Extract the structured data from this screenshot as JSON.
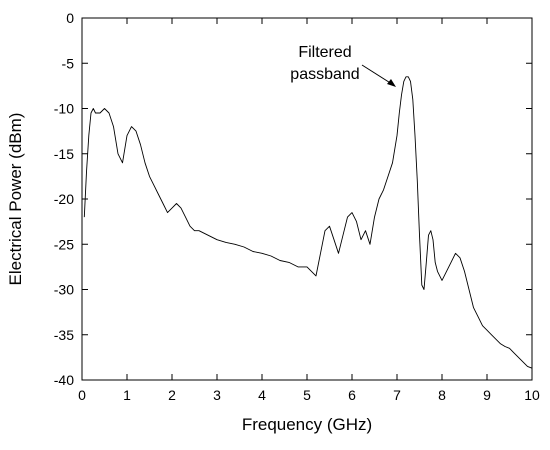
{
  "chart_data": {
    "type": "line",
    "title": "",
    "xlabel": "Frequency (GHz)",
    "ylabel": "Electrical Power (dBm)",
    "xlim": [
      0,
      10
    ],
    "ylim": [
      -40,
      0
    ],
    "xticks": [
      0,
      1,
      2,
      3,
      4,
      5,
      6,
      7,
      8,
      9,
      10
    ],
    "yticks": [
      0,
      -5,
      -10,
      -15,
      -20,
      -25,
      -30,
      -35,
      -40
    ],
    "grid": false,
    "legend": "none",
    "line_color": "#000000",
    "annotation": {
      "text_line1": "Filtered",
      "text_line2": "passband",
      "points_to": [
        7.15,
        -7.5
      ]
    },
    "series": [
      {
        "x": [
          0.05,
          0.1,
          0.15,
          0.2,
          0.25,
          0.3,
          0.4,
          0.5,
          0.6,
          0.7,
          0.8,
          0.9,
          1.0,
          1.1,
          1.2,
          1.3,
          1.4,
          1.5,
          1.6,
          1.7,
          1.8,
          1.9,
          2.0,
          2.1,
          2.2,
          2.3,
          2.4,
          2.5,
          2.6,
          2.8,
          3.0,
          3.2,
          3.4,
          3.6,
          3.8,
          4.0,
          4.2,
          4.4,
          4.6,
          4.8,
          5.0,
          5.1,
          5.2,
          5.3,
          5.4,
          5.5,
          5.6,
          5.7,
          5.8,
          5.9,
          6.0,
          6.1,
          6.2,
          6.3,
          6.4,
          6.5,
          6.6,
          6.7,
          6.8,
          6.9,
          7.0,
          7.05,
          7.1,
          7.15,
          7.2,
          7.25,
          7.3,
          7.35,
          7.4,
          7.45,
          7.5,
          7.55,
          7.6,
          7.65,
          7.7,
          7.75,
          7.8,
          7.85,
          7.9,
          8.0,
          8.1,
          8.2,
          8.3,
          8.4,
          8.5,
          8.6,
          8.7,
          8.8,
          8.9,
          9.0,
          9.1,
          9.2,
          9.3,
          9.4,
          9.5,
          9.6,
          9.7,
          9.8,
          9.9,
          10.0
        ],
        "values": [
          -22,
          -17,
          -13,
          -10.5,
          -10,
          -10.5,
          -10.5,
          -10,
          -10.5,
          -12,
          -15,
          -16,
          -13,
          -12,
          -12.5,
          -14,
          -16,
          -17.5,
          -18.5,
          -19.5,
          -20.5,
          -21.5,
          -21,
          -20.5,
          -21,
          -22,
          -23,
          -23.5,
          -23.5,
          -24,
          -24.5,
          -24.8,
          -25,
          -25.3,
          -25.8,
          -26,
          -26.3,
          -26.8,
          -27,
          -27.5,
          -27.5,
          -28,
          -28.5,
          -26,
          -23.5,
          -23,
          -24.5,
          -26,
          -24,
          -22,
          -21.5,
          -22.5,
          -24.5,
          -23.5,
          -25,
          -22,
          -20,
          -19,
          -17.5,
          -16,
          -13,
          -10.5,
          -8.5,
          -7,
          -6.5,
          -6.5,
          -7,
          -9,
          -13,
          -18,
          -24,
          -29.5,
          -30,
          -27,
          -24,
          -23.5,
          -24.5,
          -27,
          -28,
          -29,
          -28,
          -27,
          -26,
          -26.5,
          -28,
          -30,
          -32,
          -33,
          -34,
          -34.5,
          -35,
          -35.5,
          -36,
          -36.3,
          -36.5,
          -37,
          -37.5,
          -38,
          -38.5,
          -38.7
        ]
      }
    ]
  }
}
